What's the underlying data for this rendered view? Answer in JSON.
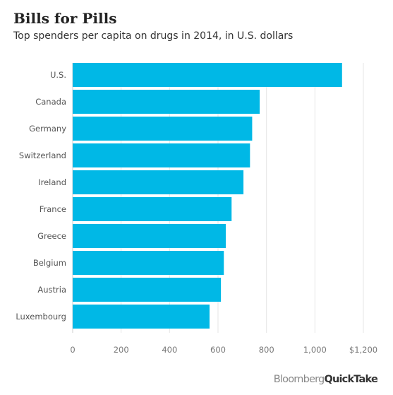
{
  "chart_data": {
    "type": "bar",
    "orientation": "horizontal",
    "title": "Bills for Pills",
    "subtitle": "Top spenders per capita on drugs in 2014, in U.S. dollars",
    "categories": [
      "U.S.",
      "Canada",
      "Germany",
      "Switzerland",
      "Ireland",
      "France",
      "Greece",
      "Belgium",
      "Austria",
      "Luxembourg"
    ],
    "values": [
      1112,
      772,
      741,
      732,
      705,
      656,
      632,
      624,
      612,
      565
    ],
    "xlim": [
      0,
      1200
    ],
    "ticks": [
      0,
      200,
      400,
      600,
      800,
      1000,
      1200
    ],
    "tick_labels": [
      "0",
      "200",
      "400",
      "600",
      "800",
      "1,000",
      "$1,200"
    ],
    "grid": true,
    "bar_color": "#00b8e6"
  },
  "branding": {
    "bloomberg": "Bloomberg",
    "quicktake": "QuickTake"
  }
}
